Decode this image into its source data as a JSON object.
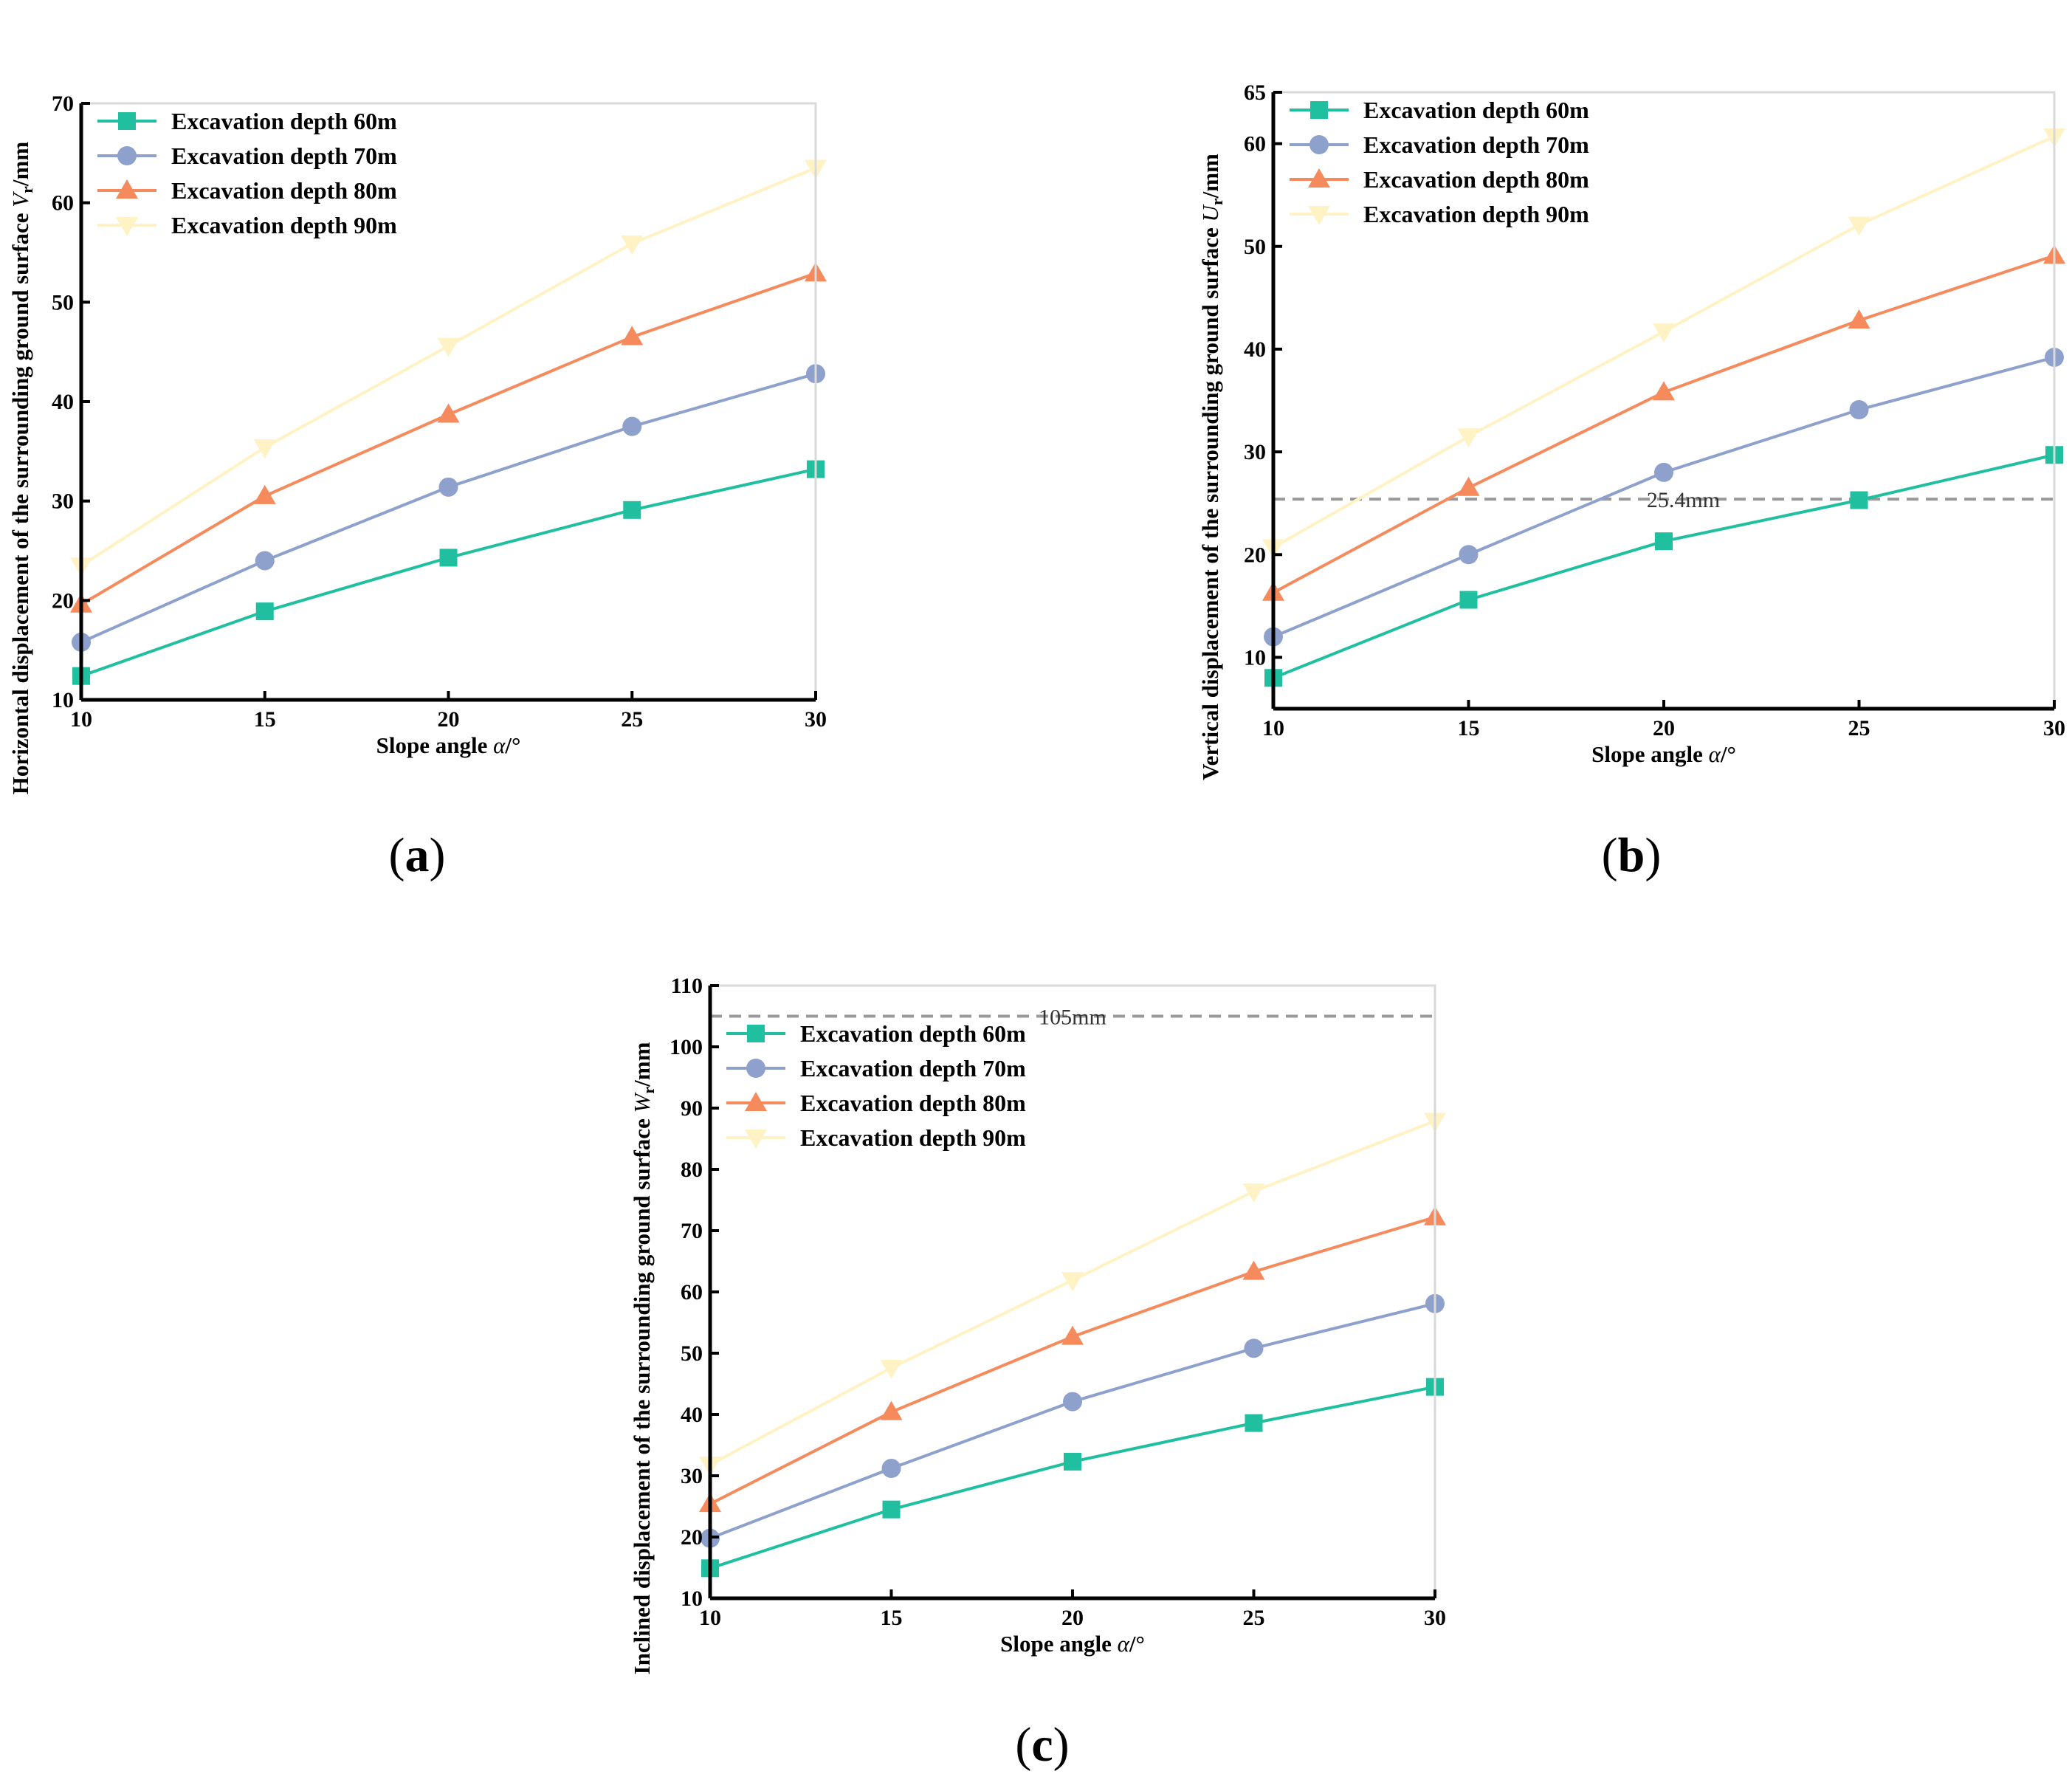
{
  "figure": {
    "description_labels": [
      "(a)",
      "(b)",
      "(c)"
    ]
  },
  "chart_data": [
    {
      "id": "a",
      "type": "line",
      "panel_label": "a",
      "title": "",
      "xlabel": "Slope angle",
      "xlabel_symbol": "α",
      "xlabel_unit": "/°",
      "ylabel": "Horizontal displacement of the surrounding ground surface",
      "ylabel_symbol": "V",
      "ylabel_subscript": "r",
      "ylabel_unit": "/mm",
      "xlim": [
        10,
        30
      ],
      "ylim": [
        10,
        70
      ],
      "xticks": [
        10,
        15,
        20,
        25,
        30
      ],
      "yticks": [
        10,
        20,
        30,
        40,
        50,
        60,
        70
      ],
      "x": [
        10,
        15,
        20,
        25,
        30
      ],
      "legend_position": "top-left",
      "reference_line": null,
      "series": [
        {
          "name": "Excavation depth 60m",
          "marker": "square",
          "color": "#1fbf9f",
          "values": [
            12.4,
            18.9,
            24.3,
            29.1,
            33.2
          ]
        },
        {
          "name": "Excavation depth 70m",
          "marker": "circle",
          "color": "#8ea0cc",
          "values": [
            15.8,
            24.0,
            31.4,
            37.5,
            42.8
          ]
        },
        {
          "name": "Excavation depth 80m",
          "marker": "triangle-up",
          "color": "#f58a5c",
          "values": [
            19.6,
            30.5,
            38.7,
            46.5,
            52.9
          ]
        },
        {
          "name": "Excavation depth 90m",
          "marker": "triangle-down",
          "color": "#fff2c4",
          "values": [
            23.5,
            35.4,
            45.6,
            55.9,
            63.5
          ]
        }
      ]
    },
    {
      "id": "b",
      "type": "line",
      "panel_label": "b",
      "title": "",
      "xlabel": "Slope angle",
      "xlabel_symbol": "α",
      "xlabel_unit": "/°",
      "ylabel": "Vertical displacement of  the surrounding ground surface",
      "ylabel_symbol": "U",
      "ylabel_subscript": "r",
      "ylabel_unit": "/mm",
      "xlim": [
        10,
        30
      ],
      "ylim": [
        5,
        65
      ],
      "xticks": [
        10,
        15,
        20,
        25,
        30
      ],
      "yticks": [
        10,
        20,
        30,
        40,
        50,
        60,
        65
      ],
      "x": [
        10,
        15,
        20,
        25,
        30
      ],
      "legend_position": "top-left",
      "reference_line": {
        "value": 25.4,
        "label": "25.4mm",
        "label_at_x": 20.5
      },
      "series": [
        {
          "name": "Excavation depth 60m",
          "marker": "square",
          "color": "#1fbf9f",
          "values": [
            8.0,
            15.6,
            21.3,
            25.3,
            29.7
          ]
        },
        {
          "name": "Excavation depth 70m",
          "marker": "circle",
          "color": "#8ea0cc",
          "values": [
            12.0,
            20.0,
            28.0,
            34.1,
            39.2
          ]
        },
        {
          "name": "Excavation depth 80m",
          "marker": "triangle-up",
          "color": "#f58a5c",
          "values": [
            16.3,
            26.5,
            35.8,
            42.8,
            49.1
          ]
        },
        {
          "name": "Excavation depth 90m",
          "marker": "triangle-down",
          "color": "#fff2c4",
          "values": [
            20.7,
            31.5,
            41.7,
            52.1,
            60.7
          ]
        }
      ]
    },
    {
      "id": "c",
      "type": "line",
      "panel_label": "c",
      "title": "",
      "xlabel": "Slope angle",
      "xlabel_symbol": "α",
      "xlabel_unit": "/°",
      "ylabel": "Inclined displacement of the surrounding ground surface",
      "ylabel_symbol": "W",
      "ylabel_subscript": "r",
      "ylabel_unit": "/mm",
      "xlim": [
        10,
        30
      ],
      "ylim": [
        10,
        110
      ],
      "xticks": [
        10,
        15,
        20,
        25,
        30
      ],
      "yticks": [
        10,
        20,
        30,
        40,
        50,
        60,
        70,
        80,
        90,
        100,
        110
      ],
      "x": [
        10,
        15,
        20,
        25,
        30
      ],
      "legend_position": "upper-left",
      "reference_line": {
        "value": 105,
        "label": "105mm",
        "label_at_x": 20
      },
      "series": [
        {
          "name": "Excavation depth 60m",
          "marker": "square",
          "color": "#1fbf9f",
          "values": [
            14.9,
            24.5,
            32.3,
            38.6,
            44.5
          ]
        },
        {
          "name": "Excavation depth 70m",
          "marker": "circle",
          "color": "#8ea0cc",
          "values": [
            19.8,
            31.2,
            42.1,
            50.8,
            58.1
          ]
        },
        {
          "name": "Excavation depth 80m",
          "marker": "triangle-up",
          "color": "#f58a5c",
          "values": [
            25.4,
            40.4,
            52.7,
            63.3,
            72.2
          ]
        },
        {
          "name": "Excavation depth 90m",
          "marker": "triangle-down",
          "color": "#fff2c4",
          "values": [
            31.8,
            47.6,
            61.9,
            76.4,
            87.9
          ]
        }
      ]
    }
  ]
}
